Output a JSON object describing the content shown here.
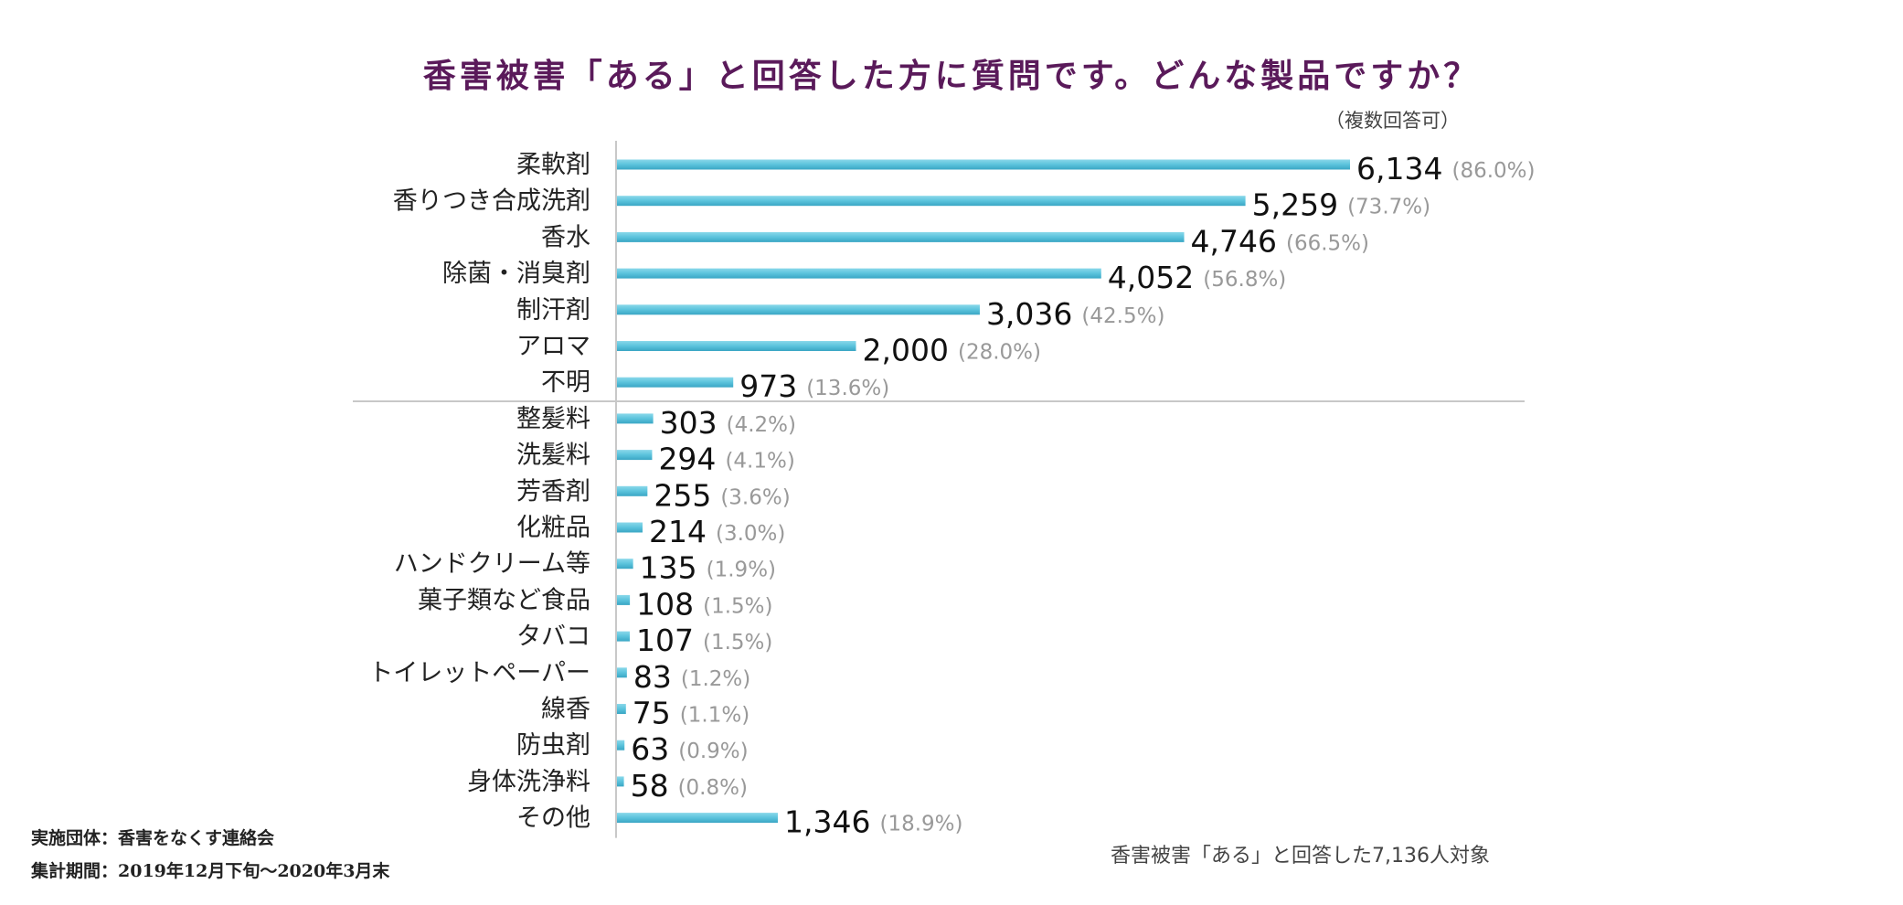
{
  "title": "香害被害「ある」と回答した方に質問です。どんな製品ですか？",
  "note": "（複数回答可）",
  "footer": {
    "organizer": "実施団体：香害をなくす連絡会",
    "period": "集計期間：2019年12月下旬～2020年3月末",
    "basis": "香害被害「ある」と回答した7,136人対象"
  },
  "colors": {
    "title": "#5a1a5a",
    "bar": "#5bc3dc",
    "bar_dark": "#3aa6c4"
  },
  "chart_data": {
    "type": "bar",
    "orientation": "horizontal",
    "categories": [
      "柔軟剤",
      "香りつき合成洗剤",
      "香水",
      "除菌・消臭剤",
      "制汗剤",
      "アロマ",
      "不明",
      "整髪料",
      "洗髪料",
      "芳香剤",
      "化粧品",
      "ハンドクリーム等",
      "菓子類など食品",
      "タバコ",
      "トイレットペーパー",
      "線香",
      "防虫剤",
      "身体洗浄料",
      "その他"
    ],
    "values": [
      6134,
      5259,
      4746,
      4052,
      3036,
      2000,
      973,
      303,
      294,
      255,
      214,
      135,
      108,
      107,
      83,
      75,
      63,
      58,
      1346
    ],
    "value_labels": [
      "6,134",
      "5,259",
      "4,746",
      "4,052",
      "3,036",
      "2,000",
      "973",
      "303",
      "294",
      "255",
      "214",
      "135",
      "108",
      "107",
      "83",
      "75",
      "63",
      "58",
      "1,346"
    ],
    "percent_labels": [
      "(86.0%)",
      "(73.7%)",
      "(66.5%)",
      "(56.8%)",
      "(42.5%)",
      "(28.0%)",
      "(13.6%)",
      "(4.2%)",
      "(4.1%)",
      "(3.6%)",
      "(3.0%)",
      "(1.9%)",
      "(1.5%)",
      "(1.5%)",
      "(1.2%)",
      "(1.1%)",
      "(0.9%)",
      "(0.8%)",
      "(18.9%)"
    ],
    "xlim": [
      0,
      7136
    ],
    "separator_after_index": 6,
    "grid": false
  }
}
